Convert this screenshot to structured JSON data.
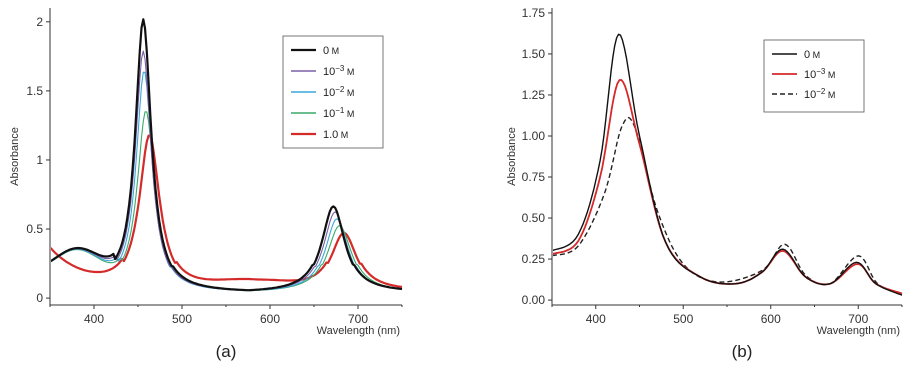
{
  "chart_data": [
    {
      "type": "line",
      "caption": "(a)",
      "xlabel": "Wavelength (nm)",
      "ylabel": "Absorbance",
      "xlim": [
        350,
        750
      ],
      "ylim": [
        -0.05,
        2.1
      ],
      "xticks": [
        400,
        500,
        600,
        700
      ],
      "yticks": [
        0,
        0.5,
        1,
        1.5,
        2
      ],
      "ytick_labels": [
        "0",
        "0.5",
        "1",
        "1.5",
        "2"
      ],
      "grid": false,
      "legend_position": "top-right",
      "series": [
        {
          "name": "0",
          "unit": "M",
          "color": "#111111",
          "width": 2.2,
          "dash": "",
          "peak1": {
            "x": 456,
            "y": 1.99,
            "w": 11
          },
          "peak2": {
            "x": 672,
            "y": 0.64,
            "w": 16
          },
          "points": [
            [
              350,
              0.33
            ],
            [
              400,
              0.32
            ],
            [
              430,
              0.7
            ],
            [
              456,
              1.99
            ],
            [
              480,
              0.5
            ],
            [
              520,
              0.14
            ],
            [
              570,
              0.1
            ],
            [
              620,
              0.18
            ],
            [
              672,
              0.64
            ],
            [
              710,
              0.2
            ],
            [
              750,
              0.06
            ]
          ]
        },
        {
          "name": "10",
          "sup": "−3",
          "unit": "M",
          "color": "#7a5ea8",
          "width": 1.1,
          "dash": "",
          "peak1": {
            "x": 456,
            "y": 1.76,
            "w": 11
          },
          "peak2": {
            "x": 674,
            "y": 0.6,
            "w": 16
          },
          "points": [
            [
              350,
              0.3
            ],
            [
              456,
              1.76
            ],
            [
              674,
              0.6
            ],
            [
              750,
              0.07
            ]
          ]
        },
        {
          "name": "10",
          "sup": "−2",
          "unit": "M",
          "color": "#3aa8d8",
          "width": 1.1,
          "dash": "",
          "peak1": {
            "x": 457,
            "y": 1.62,
            "w": 11
          },
          "peak2": {
            "x": 676,
            "y": 0.55,
            "w": 16
          },
          "points": [
            [
              350,
              0.28
            ],
            [
              457,
              1.62
            ],
            [
              676,
              0.55
            ],
            [
              750,
              0.07
            ]
          ]
        },
        {
          "name": "10",
          "sup": "−1",
          "unit": "M",
          "color": "#3aaa6a",
          "width": 1.1,
          "dash": "",
          "peak1": {
            "x": 459,
            "y": 1.33,
            "w": 12
          },
          "peak2": {
            "x": 679,
            "y": 0.5,
            "w": 17
          },
          "points": [
            [
              350,
              0.27
            ],
            [
              459,
              1.33
            ],
            [
              679,
              0.5
            ],
            [
              750,
              0.08
            ]
          ]
        },
        {
          "name": "1.0",
          "unit": "M",
          "color": "#d42a2a",
          "width": 2.2,
          "dash": "",
          "peak1": {
            "x": 463,
            "y": 1.14,
            "w": 14
          },
          "peak2": {
            "x": 684,
            "y": 0.44,
            "w": 18
          },
          "points": [
            [
              350,
              0.38
            ],
            [
              400,
              0.26
            ],
            [
              463,
              1.14
            ],
            [
              520,
              0.2
            ],
            [
              600,
              0.12
            ],
            [
              684,
              0.44
            ],
            [
              750,
              0.12
            ]
          ]
        }
      ]
    },
    {
      "type": "line",
      "caption": "(b)",
      "xlabel": "Wavelength (nm)",
      "ylabel": "Absorbance",
      "xlim": [
        350,
        750
      ],
      "ylim": [
        -0.03,
        1.78
      ],
      "xticks": [
        400,
        500,
        600,
        700
      ],
      "yticks": [
        0,
        0.25,
        0.5,
        0.75,
        1,
        1.25,
        1.5,
        1.75
      ],
      "ytick_labels": [
        "0.00",
        "0.25",
        "0.50",
        "0.75",
        "1.00",
        "1.25",
        "1.50",
        "1.75"
      ],
      "grid": false,
      "legend_position": "top-right",
      "series": [
        {
          "name": "0",
          "unit": "M",
          "color": "#111111",
          "width": 1.4,
          "dash": "",
          "points": [
            [
              350,
              0.3
            ],
            [
              380,
              0.4
            ],
            [
              405,
              0.85
            ],
            [
              426,
              1.62
            ],
            [
              450,
              1.0
            ],
            [
              480,
              0.35
            ],
            [
              520,
              0.14
            ],
            [
              560,
              0.1
            ],
            [
              590,
              0.17
            ],
            [
              614,
              0.31
            ],
            [
              640,
              0.14
            ],
            [
              668,
              0.1
            ],
            [
              698,
              0.23
            ],
            [
              720,
              0.1
            ],
            [
              750,
              0.03
            ]
          ]
        },
        {
          "name": "10",
          "sup": "−3",
          "unit": "M",
          "color": "#d42a2a",
          "width": 1.8,
          "dash": "",
          "points": [
            [
              350,
              0.28
            ],
            [
              380,
              0.36
            ],
            [
              405,
              0.75
            ],
            [
              427,
              1.34
            ],
            [
              450,
              0.95
            ],
            [
              480,
              0.35
            ],
            [
              520,
              0.14
            ],
            [
              560,
              0.1
            ],
            [
              590,
              0.17
            ],
            [
              614,
              0.3
            ],
            [
              640,
              0.14
            ],
            [
              668,
              0.1
            ],
            [
              699,
              0.22
            ],
            [
              720,
              0.1
            ],
            [
              750,
              0.04
            ]
          ]
        },
        {
          "name": "10",
          "sup": "−2",
          "unit": "M",
          "color": "#222222",
          "width": 1.4,
          "dash": "5 3",
          "points": [
            [
              350,
              0.27
            ],
            [
              380,
              0.33
            ],
            [
              410,
              0.65
            ],
            [
              430,
              1.06
            ],
            [
              445,
              1.05
            ],
            [
              470,
              0.55
            ],
            [
              500,
              0.22
            ],
            [
              540,
              0.11
            ],
            [
              590,
              0.18
            ],
            [
              616,
              0.34
            ],
            [
              640,
              0.15
            ],
            [
              668,
              0.1
            ],
            [
              700,
              0.27
            ],
            [
              722,
              0.1
            ],
            [
              750,
              0.04
            ]
          ]
        }
      ]
    }
  ]
}
